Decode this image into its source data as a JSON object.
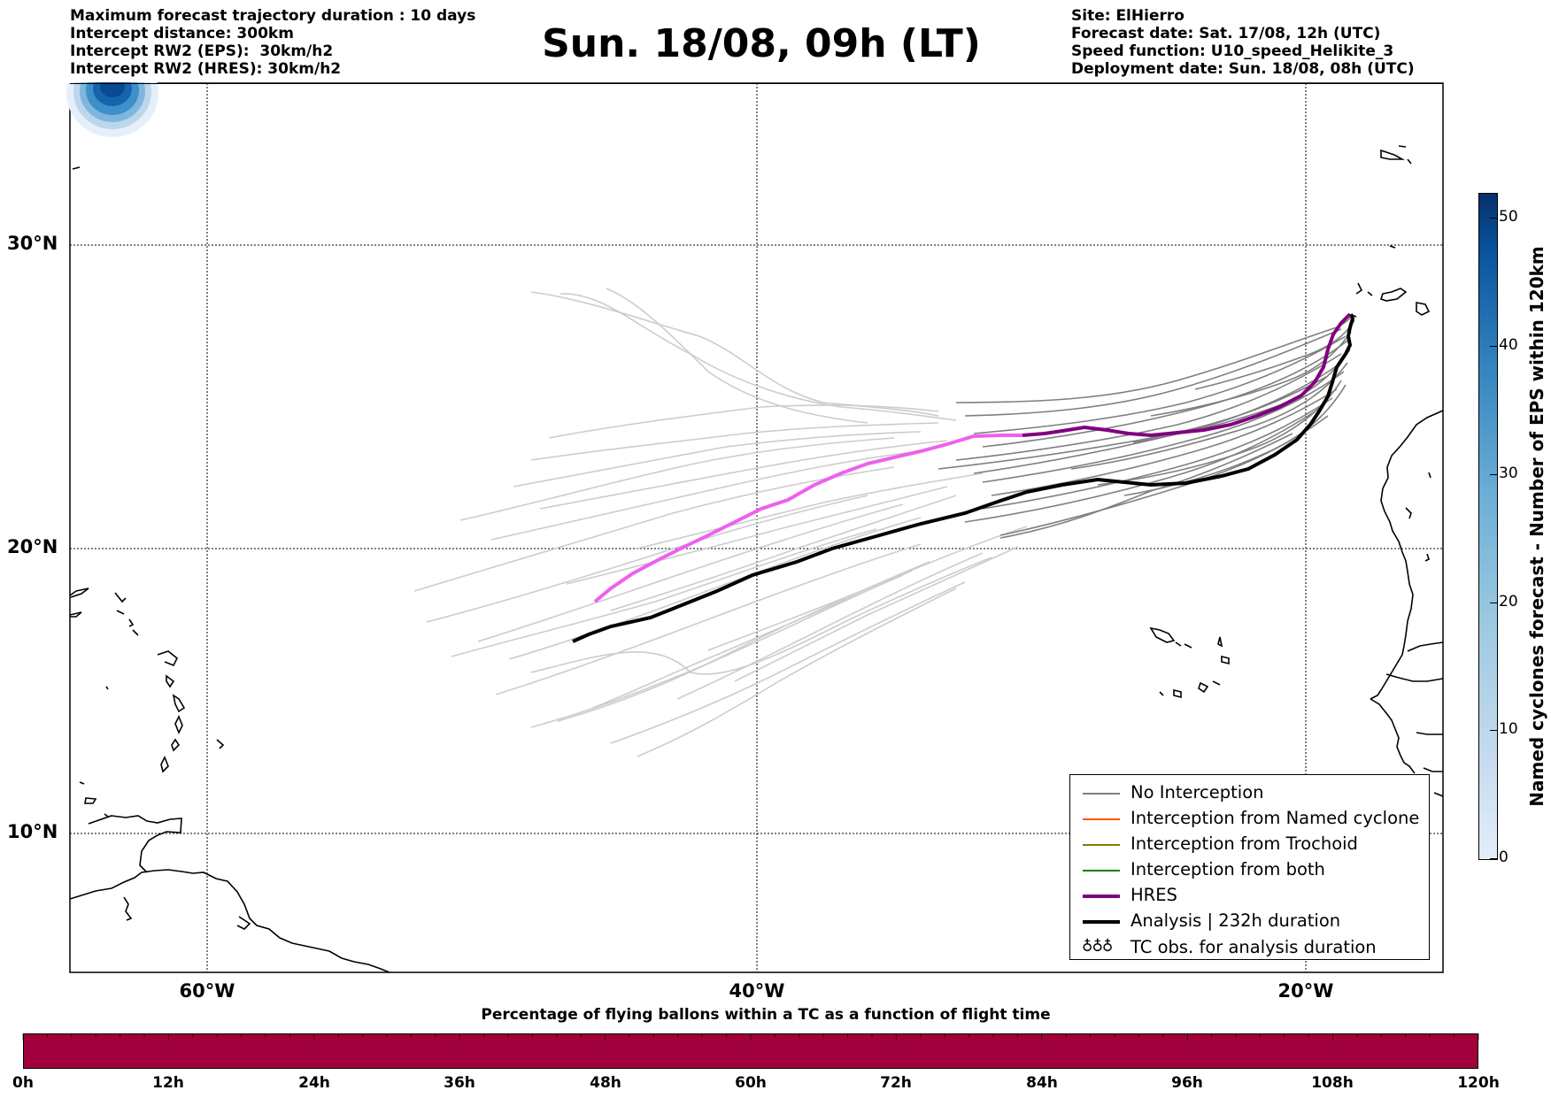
{
  "title": "Sun. 18/08, 09h (LT)",
  "header_left": [
    "Maximum forecast trajectory duration : 10 days",
    "Intercept distance: 300km",
    "Intercept RW2 (EPS):  30km/h2",
    "Intercept RW2 (HRES): 30km/h2"
  ],
  "header_right": [
    "Site: ElHierro",
    "Forecast date: Sat. 17/08, 12h (UTC)",
    "Speed function: U10_speed_Helikite_3",
    "Deployment date: Sun. 18/08, 08h (UTC)"
  ],
  "map": {
    "lat_labels": [
      "30°N",
      "20°N",
      "10°N"
    ],
    "lon_labels": [
      "60°W",
      "40°W",
      "20°W"
    ]
  },
  "legend": {
    "no_interception": "No Interception",
    "named_cyclone": "Interception from Named cyclone",
    "trochoid": "Interception from Trochoid",
    "both": "Interception from both",
    "hres": "HRES",
    "analysis": "Analysis | 232h duration",
    "tc_obs": "TC obs. for analysis duration"
  },
  "colors": {
    "no_interception": "#7f7f7f",
    "named_cyclone": "#ff5500",
    "trochoid": "#808000",
    "both": "#008000",
    "hres": "#800080",
    "hres_early": "#ee60ee",
    "analysis": "#000000",
    "bottom_bar": "#a0003c"
  },
  "colorbar": {
    "label": "Named cyclones forecast - Number of EPS within 120km",
    "ticks": [
      "0",
      "10",
      "20",
      "30",
      "40",
      "50"
    ],
    "max": 52
  },
  "bottom_bar": {
    "title": "Percentage of flying ballons within a TC as a function of flight time",
    "labels": [
      "0h",
      "12h",
      "24h",
      "36h",
      "48h",
      "60h",
      "72h",
      "84h",
      "96h",
      "108h",
      "120h"
    ]
  }
}
